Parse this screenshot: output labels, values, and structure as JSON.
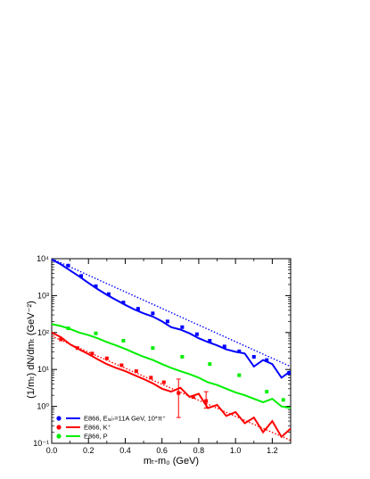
{
  "chart_data": {
    "type": "line",
    "title": "",
    "xlabel": "mₜ-m₀ (GeV)",
    "ylabel": "(1/mₜ) dN/dmₜ (GeV⁻²)",
    "xlim": [
      0.0,
      1.3
    ],
    "ylim_log10": [
      -1,
      4
    ],
    "y_scale": "log",
    "grid": false,
    "legend_placement": "bottom-left",
    "x_ticks": [
      "0.0",
      "0.2",
      "0.4",
      "0.6",
      "0.8",
      "1.0",
      "1.2"
    ],
    "y_ticks": [
      "10⁻¹",
      "10⁰",
      "10¹",
      "10²",
      "10³",
      "10⁴"
    ],
    "legend": [
      {
        "label": "E866, Eₗₐ♭=11A GeV, 10*π⁺",
        "color": "#0000ff"
      },
      {
        "label": "E866, K⁺",
        "color": "#ff0000"
      },
      {
        "label": "E866, P",
        "color": "#00ee00"
      }
    ],
    "series": [
      {
        "color": "#0000ff",
        "points_x": [
          0.09,
          0.16,
          0.24,
          0.31,
          0.39,
          0.47,
          0.55,
          0.63,
          0.71,
          0.79,
          0.86,
          0.94,
          1.02,
          1.1,
          1.17,
          1.29
        ],
        "points_y": [
          6500,
          3400,
          1800,
          1100,
          650,
          440,
          330,
          200,
          140,
          90,
          60,
          42,
          31,
          22,
          18,
          8
        ],
        "model_x": [
          0.0,
          0.05,
          0.1,
          0.15,
          0.2,
          0.25,
          0.3,
          0.35,
          0.4,
          0.45,
          0.5,
          0.55,
          0.6,
          0.65,
          0.7,
          0.75,
          0.8,
          0.85,
          0.9,
          0.95,
          1.0,
          1.05,
          1.1,
          1.15,
          1.2,
          1.25,
          1.3
        ],
        "model_y": [
          9500,
          7000,
          4800,
          3300,
          2200,
          1500,
          1050,
          760,
          560,
          420,
          330,
          270,
          200,
          140,
          120,
          95,
          70,
          55,
          45,
          35,
          30,
          27,
          12,
          18,
          14,
          6,
          9
        ],
        "fit_x": [
          0.0,
          1.3
        ],
        "fit_y": [
          10000,
          12
        ]
      },
      {
        "color": "#ff0000",
        "points_x": [
          0.05,
          0.14,
          0.22,
          0.3,
          0.38,
          0.46,
          0.54,
          0.61,
          0.69,
          0.77,
          0.84
        ],
        "points_y": [
          65,
          38,
          27,
          20,
          13,
          9,
          6,
          4.5,
          2.3,
          1.8,
          1.4
        ],
        "points_err_low": [
          null,
          null,
          null,
          null,
          null,
          null,
          null,
          null,
          0.5,
          null,
          0.9
        ],
        "points_err_high": [
          null,
          null,
          null,
          null,
          null,
          null,
          null,
          null,
          5.5,
          null,
          2.5
        ],
        "model_x": [
          0.0,
          0.05,
          0.1,
          0.15,
          0.2,
          0.25,
          0.3,
          0.35,
          0.4,
          0.45,
          0.5,
          0.55,
          0.6,
          0.65,
          0.7,
          0.75,
          0.8,
          0.85,
          0.9,
          0.95,
          1.0,
          1.05,
          1.1,
          1.15,
          1.2,
          1.25,
          1.3
        ],
        "model_y": [
          100,
          75,
          48,
          35,
          26,
          19,
          14,
          11,
          9,
          7,
          5.5,
          4.2,
          3.0,
          2.5,
          3.2,
          1.8,
          2.2,
          0.9,
          1.1,
          0.55,
          0.7,
          0.35,
          0.5,
          0.2,
          0.4,
          0.15,
          0.25
        ],
        "fit_x": [
          0.0,
          1.3
        ],
        "fit_y": [
          80,
          0.12
        ]
      },
      {
        "color": "#00ee00",
        "points_x": [
          0.09,
          0.24,
          0.39,
          0.55,
          0.71,
          0.86,
          1.02,
          1.17,
          1.26
        ],
        "points_y": [
          130,
          95,
          60,
          38,
          22,
          14,
          7,
          2.5,
          1.5
        ],
        "model_x": [
          0.0,
          0.05,
          0.1,
          0.15,
          0.2,
          0.25,
          0.3,
          0.35,
          0.4,
          0.45,
          0.5,
          0.55,
          0.6,
          0.65,
          0.7,
          0.75,
          0.8,
          0.85,
          0.9,
          0.95,
          1.0,
          1.05,
          1.1,
          1.15,
          1.2,
          1.25,
          1.3
        ],
        "model_y": [
          170,
          150,
          125,
          100,
          85,
          70,
          55,
          45,
          36,
          28,
          22,
          18,
          14,
          11,
          9,
          7.5,
          6,
          4.5,
          3.8,
          3.0,
          2.4,
          2.0,
          1.6,
          1.3,
          1.6,
          1.0,
          0.9
        ]
      }
    ]
  }
}
